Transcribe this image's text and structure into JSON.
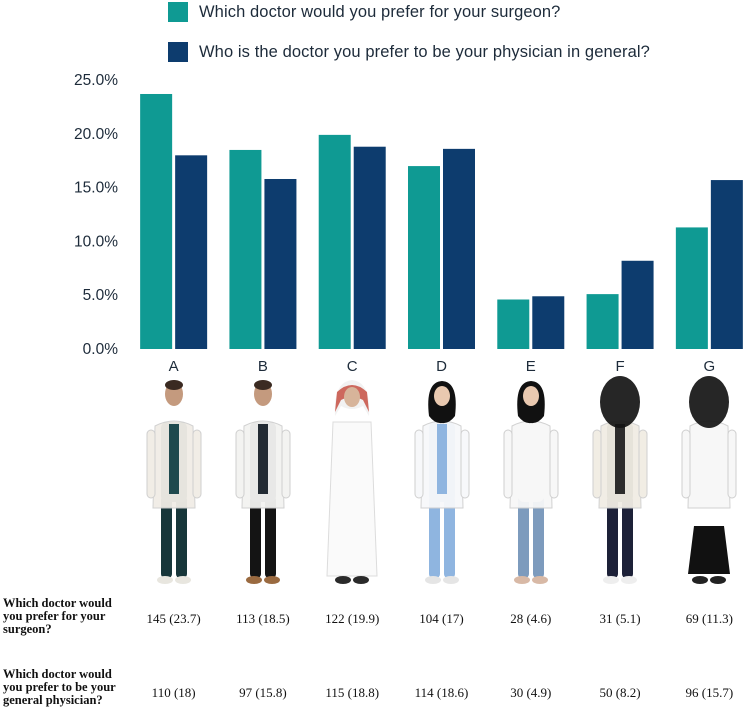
{
  "legend": [
    {
      "label": "Which doctor would you prefer for your surgeon?",
      "color": "#0f9a93"
    },
    {
      "label": "Who is the doctor you prefer to be your physician in general?",
      "color": "#0d3c6e"
    }
  ],
  "chart_data": {
    "type": "bar",
    "categories": [
      "A",
      "B",
      "C",
      "D",
      "E",
      "F",
      "G"
    ],
    "series": [
      {
        "name": "Which doctor would you prefer for your surgeon?",
        "values": [
          23.7,
          18.5,
          19.9,
          17.0,
          4.6,
          5.1,
          11.3
        ],
        "color": "#0f9a93"
      },
      {
        "name": "Who is the doctor you prefer to be your physician in general?",
        "values": [
          18.0,
          15.8,
          18.8,
          18.6,
          4.9,
          8.2,
          15.7
        ],
        "color": "#0d3c6e"
      }
    ],
    "yticks": [
      "0.0%",
      "5.0%",
      "10.0%",
      "15.0%",
      "20.0%",
      "25.0%"
    ],
    "ylim": [
      0,
      25
    ],
    "legend_position": "top",
    "grid": false
  },
  "figures": [
    {
      "category": "A",
      "icon": "male-doctor-scrubs-figure",
      "coat": "#f1ede6",
      "top": "#1f4a4e",
      "bottom": "#17363a",
      "head": "#3a2a22",
      "shoes": "#e8e6df"
    },
    {
      "category": "B",
      "icon": "male-doctor-suit-figure",
      "coat": "#f3f3f1",
      "top": "#222a33",
      "bottom": "#141414",
      "head": "#3b2b22",
      "shoes": "#9a6a40"
    },
    {
      "category": "C",
      "icon": "male-doctor-thobe-figure",
      "coat": "#fafafa",
      "top": "#fafafa",
      "bottom": "#f4f4f4",
      "head": "#c0392b",
      "shoes": "#2a2a2a"
    },
    {
      "category": "D",
      "icon": "female-doctor-hijab-scrubs-figure",
      "coat": "#f7f8fa",
      "top": "#8fb5e0",
      "bottom": "#8fb5e0",
      "head": "#111111",
      "shoes": "#e5e5e5"
    },
    {
      "category": "E",
      "icon": "female-doctor-hijab-jeans-figure",
      "coat": "#f7f7f7",
      "top": "#f7f7f7",
      "bottom": "#7d9bbd",
      "head": "#111111",
      "shoes": "#d8b9a6"
    },
    {
      "category": "F",
      "icon": "female-doctor-niqab-trousers-figure",
      "coat": "#f1ede4",
      "top": "#2c2c2c",
      "bottom": "#1d2138",
      "head": "#141414",
      "shoes": "#eeeeee"
    },
    {
      "category": "G",
      "icon": "female-doctor-niqab-skirt-figure",
      "coat": "#f7f7f7",
      "top": "#f7f7f7",
      "bottom": "#111111",
      "head": "#141414",
      "shoes": "#222222"
    }
  ],
  "table": {
    "rows": [
      {
        "label": "Which doctor would you prefer for your surgeon?",
        "cells": [
          "145 (23.7)",
          "113 (18.5)",
          "122 (19.9)",
          "104 (17)",
          "28 (4.6)",
          "31 (5.1)",
          "69 (11.3)"
        ]
      },
      {
        "label": "Which doctor would you prefer to be your general physician?",
        "cells": [
          "110 (18)",
          "97 (15.8)",
          "115 (18.8)",
          "114 (18.6)",
          "30 (4.9)",
          "50 (8.2)",
          "96 (15.7)"
        ]
      }
    ]
  }
}
